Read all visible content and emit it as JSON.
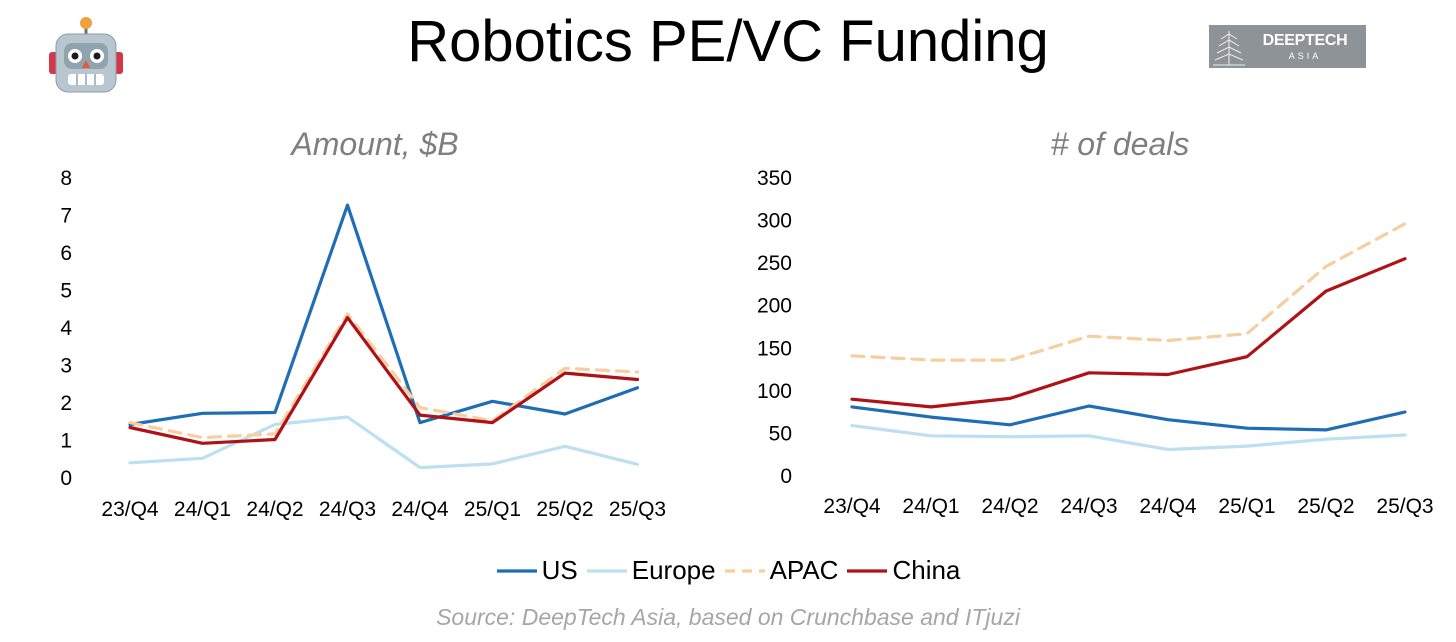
{
  "title": "Robotics PE/VC Funding",
  "logo": {
    "text": "DEEPTECH",
    "subtext": "ASIA"
  },
  "colors": {
    "US": "#1f6db5",
    "Europe": "#bde0f0",
    "APAC": "#f5cfa0",
    "China": "#b01116"
  },
  "chart_data": [
    {
      "type": "line",
      "title": "Amount, $B",
      "categories": [
        "23/Q4",
        "24/Q1",
        "24/Q2",
        "24/Q3",
        "24/Q4",
        "25/Q1",
        "25/Q2",
        "25/Q3"
      ],
      "ylim": [
        0,
        8
      ],
      "yticks": [
        "0",
        "1",
        "2",
        "3",
        "4",
        "5",
        "6",
        "7",
        "8"
      ],
      "series": [
        {
          "name": "US",
          "values": [
            1.4,
            1.7,
            1.72,
            7.25,
            1.45,
            2.02,
            1.68,
            2.38
          ]
        },
        {
          "name": "Europe",
          "values": [
            0.38,
            0.5,
            1.4,
            1.6,
            0.25,
            0.35,
            0.82,
            0.34
          ]
        },
        {
          "name": "APAC",
          "values": [
            1.45,
            1.05,
            1.15,
            4.35,
            1.85,
            1.5,
            2.9,
            2.8
          ]
        },
        {
          "name": "China",
          "values": [
            1.32,
            0.9,
            1.0,
            4.25,
            1.65,
            1.45,
            2.77,
            2.6
          ]
        }
      ]
    },
    {
      "type": "line",
      "title": "# of deals",
      "categories": [
        "23/Q4",
        "24/Q1",
        "24/Q2",
        "24/Q3",
        "24/Q4",
        "25/Q1",
        "25/Q2",
        "25/Q3"
      ],
      "ylim": [
        0,
        350
      ],
      "yticks": [
        "0",
        "50",
        "100",
        "150",
        "200",
        "250",
        "300",
        "350"
      ],
      "series": [
        {
          "name": "US",
          "values": [
            80,
            68,
            59,
            81,
            65,
            55,
            53,
            74
          ]
        },
        {
          "name": "Europe",
          "values": [
            58,
            46,
            45,
            46,
            30,
            34,
            42,
            47
          ]
        },
        {
          "name": "APAC",
          "values": [
            140,
            135,
            135,
            163,
            158,
            166,
            245,
            295
          ]
        },
        {
          "name": "China",
          "values": [
            89,
            80,
            90,
            120,
            118,
            139,
            216,
            254
          ]
        }
      ]
    }
  ],
  "legend": [
    "US",
    "Europe",
    "APAC",
    "China"
  ],
  "source": "Source: DeepTech Asia, based on Crunchbase and ITjuzi"
}
